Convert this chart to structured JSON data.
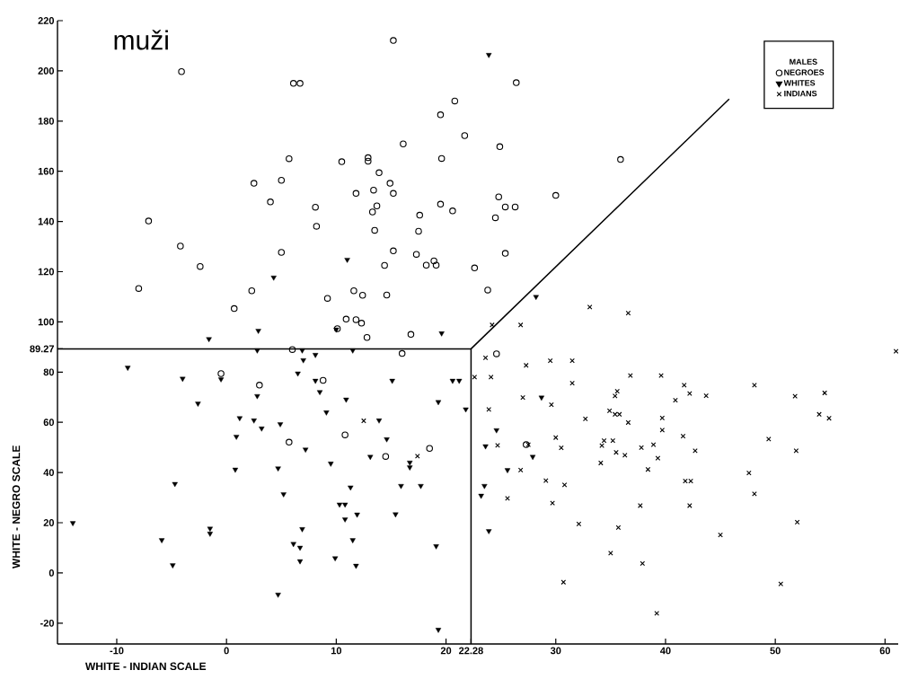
{
  "chart_data": {
    "type": "scatter",
    "title": "muži",
    "xlabel": "WHITE - INDIAN SCALE",
    "ylabel": "WHITE - NEGRO SCALE",
    "legend_title": "MALES",
    "legend": "top right",
    "grid": false,
    "xlim": [
      -15.4,
      61.2
    ],
    "ylim": [
      -28.3,
      220
    ],
    "xticks": [
      -10,
      0,
      10,
      20,
      22.28,
      30,
      40,
      50,
      60
    ],
    "yticks": [
      -20,
      0,
      20,
      40,
      60,
      80,
      89.27,
      100,
      120,
      140,
      160,
      180,
      200,
      220
    ],
    "series": [
      {
        "name": "NEGROES",
        "marker": "circle",
        "color": "#000000",
        "x": [
          -4.1,
          6.1,
          6.7,
          5.7,
          10.5,
          2.5,
          5.0,
          4.0,
          8.1,
          8.2,
          -7.1,
          -4.2,
          -2.4,
          5.0,
          -8.0,
          2.3,
          0.7,
          9.2,
          10.9,
          6.0,
          -0.5,
          3.0,
          8.8,
          5.7,
          10.8,
          10.1,
          15.2,
          26.4,
          20.8,
          19.5,
          21.7,
          16.1,
          24.9,
          19.6,
          35.9,
          12.9,
          12.9,
          13.9,
          14.9,
          11.8,
          13.4,
          15.2,
          24.8,
          30.0,
          25.4,
          26.3,
          13.7,
          13.3,
          19.5,
          20.6,
          17.6,
          24.5,
          13.5,
          17.5,
          15.2,
          25.4,
          17.3,
          14.4,
          18.2,
          18.9,
          19.1,
          22.6,
          23.8,
          11.6,
          12.4,
          14.6,
          11.8,
          12.3,
          12.8,
          16.8,
          16.0,
          24.6,
          14.5,
          18.5,
          27.3
        ],
        "values": [
          199.7,
          195.0,
          195.0,
          165.0,
          163.8,
          155.2,
          156.4,
          147.8,
          145.7,
          138.1,
          140.2,
          130.2,
          122.1,
          127.7,
          113.3,
          112.4,
          105.3,
          109.4,
          101.1,
          89.0,
          79.4,
          74.8,
          76.7,
          52.1,
          55.0,
          97.3,
          212.1,
          195.3,
          188.0,
          182.5,
          174.2,
          170.9,
          169.8,
          165.1,
          164.7,
          165.4,
          164.0,
          159.4,
          155.2,
          151.2,
          152.5,
          151.2,
          149.8,
          150.4,
          145.8,
          145.8,
          146.2,
          143.8,
          146.9,
          144.2,
          142.5,
          141.5,
          136.5,
          136.1,
          128.3,
          127.3,
          126.9,
          122.5,
          122.6,
          124.3,
          122.6,
          121.5,
          112.7,
          112.4,
          110.6,
          110.7,
          100.9,
          99.5,
          93.8,
          95.0,
          87.4,
          87.3,
          46.4,
          49.6,
          51.1
        ]
      },
      {
        "name": "WHITES",
        "marker": "triangle",
        "color": "#000000",
        "x": [
          4.3,
          11.0,
          2.9,
          10.0,
          23.9,
          28.2,
          19.6,
          -1.6,
          2.8,
          6.9,
          7.0,
          8.1,
          -9.0,
          -4.0,
          -0.5,
          6.5,
          8.1,
          8.5,
          10.9,
          2.8,
          -2.6,
          9.1,
          1.2,
          2.5,
          3.2,
          4.9,
          0.9,
          7.2,
          9.5,
          0.8,
          4.7,
          -4.7,
          5.2,
          10.3,
          10.8,
          11.3,
          10.8,
          -14.0,
          -1.5,
          -1.5,
          6.9,
          -5.9,
          6.1,
          6.7,
          -4.9,
          6.7,
          9.9,
          4.7,
          11.5,
          15.1,
          20.6,
          21.2,
          19.3,
          21.8,
          13.9,
          14.6,
          13.1,
          16.7,
          16.7,
          15.9,
          17.7,
          11.9,
          15.4,
          11.5,
          11.8,
          19.1,
          19.3,
          23.6,
          24.6,
          23.5,
          23.2,
          23.9,
          25.6,
          27.9,
          28.7
        ],
        "values": [
          117.7,
          124.8,
          96.5,
          97.0,
          206.4,
          110.0,
          95.5,
          93.2,
          88.7,
          88.7,
          84.8,
          86.9,
          81.8,
          77.4,
          77.2,
          79.5,
          76.6,
          72.1,
          69.1,
          70.5,
          67.5,
          64.0,
          61.7,
          60.8,
          57.6,
          59.3,
          54.3,
          49.2,
          43.6,
          41.2,
          41.7,
          35.5,
          31.4,
          27.3,
          27.3,
          34.1,
          21.4,
          19.9,
          17.7,
          15.7,
          17.5,
          13.1,
          11.6,
          10.1,
          3.1,
          4.7,
          5.9,
          -8.6,
          88.7,
          76.6,
          76.6,
          76.6,
          68.1,
          65.2,
          60.8,
          53.3,
          46.3,
          44.0,
          42.1,
          34.7,
          34.7,
          23.3,
          23.4,
          13.1,
          2.9,
          10.7,
          -22.6,
          50.5,
          56.9,
          34.7,
          30.8,
          16.7,
          41.0,
          46.3,
          69.9
        ]
      },
      {
        "name": "INDIANS",
        "marker": "cross",
        "color": "#000000",
        "x": [
          24.2,
          26.8,
          33.1,
          36.6,
          23.6,
          27.3,
          29.5,
          31.5,
          31.5,
          22.6,
          24.1,
          36.8,
          27.0,
          29.6,
          23.9,
          32.7,
          35.6,
          35.4,
          34.9,
          35.4,
          35.8,
          36.6,
          12.5,
          17.4,
          24.7,
          27.5,
          30.0,
          30.5,
          34.4,
          35.2,
          34.2,
          35.5,
          36.3,
          34.1,
          26.8,
          29.1,
          30.8,
          25.6,
          29.7,
          32.1,
          35.7,
          35.0,
          30.7,
          61.0,
          39.6,
          41.7,
          42.2,
          43.7,
          40.9,
          48.1,
          51.8,
          54.5,
          54.0,
          54.9,
          39.7,
          39.7,
          41.6,
          49.4,
          37.8,
          38.9,
          39.3,
          42.7,
          51.9,
          38.4,
          47.6,
          41.8,
          42.3,
          48.1,
          37.7,
          42.2,
          52.0,
          45.0,
          37.9,
          50.5,
          39.2
        ],
        "values": [
          98.8,
          98.8,
          105.9,
          103.5,
          85.7,
          82.7,
          84.5,
          84.5,
          75.6,
          78.0,
          78.0,
          78.6,
          69.9,
          67.0,
          65.1,
          61.4,
          72.4,
          70.5,
          64.6,
          63.2,
          63.2,
          59.9,
          60.6,
          46.5,
          50.8,
          51.1,
          53.9,
          49.8,
          52.7,
          52.7,
          50.7,
          48.0,
          46.9,
          43.8,
          41.0,
          36.8,
          35.1,
          29.7,
          27.8,
          19.5,
          18.1,
          7.9,
          -3.7,
          88.3,
          78.6,
          74.8,
          71.5,
          70.6,
          68.8,
          74.8,
          70.4,
          71.7,
          63.2,
          61.6,
          61.7,
          56.9,
          54.5,
          53.3,
          49.9,
          51.1,
          45.7,
          48.7,
          48.7,
          41.2,
          39.8,
          36.6,
          36.6,
          31.5,
          26.8,
          26.8,
          20.2,
          15.1,
          3.8,
          -4.4,
          -16.1
        ]
      },
      {
        "type": "line",
        "marker": "none",
        "line_style": "solid",
        "color": "#000000",
        "x": [
          -15.4,
          22.28,
          22.28
        ],
        "values": [
          89.27,
          89.27,
          -28.3
        ]
      },
      {
        "type": "line",
        "marker": "none",
        "line_style": "solid",
        "color": "#000000",
        "x": [
          22.28,
          45.8
        ],
        "values": [
          89.27,
          188.8
        ]
      }
    ]
  }
}
